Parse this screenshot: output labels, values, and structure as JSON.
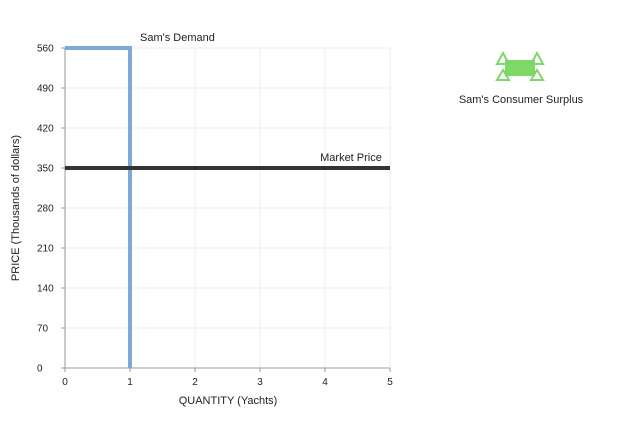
{
  "chart_data": {
    "type": "line",
    "xlabel": "QUANTITY (Yachts)",
    "ylabel": "PRICE (Thousands of dollars)",
    "xlim": [
      0,
      5
    ],
    "ylim": [
      0,
      560
    ],
    "x_ticks": [
      0,
      1,
      2,
      3,
      4,
      5
    ],
    "y_ticks": [
      0,
      70,
      140,
      210,
      280,
      350,
      420,
      490,
      560
    ],
    "grid": true,
    "series": [
      {
        "name": "Sam's Demand",
        "color": "#7ea8d8",
        "points": [
          [
            0,
            560
          ],
          [
            1,
            560
          ],
          [
            1,
            0
          ]
        ]
      },
      {
        "name": "Market Price",
        "color": "#333333",
        "points": [
          [
            0,
            350
          ],
          [
            5,
            350
          ]
        ]
      }
    ],
    "annotations": [
      {
        "text": "Sam's Demand",
        "x": 1,
        "y": 560
      },
      {
        "text": "Market Price",
        "x": 4.4,
        "y": 350
      }
    ],
    "legend": {
      "placement": "right",
      "items": [
        {
          "label": "Sam's Consumer Surplus",
          "color": "#7dd866",
          "icon": "green-triangle-area-icon"
        }
      ]
    }
  }
}
